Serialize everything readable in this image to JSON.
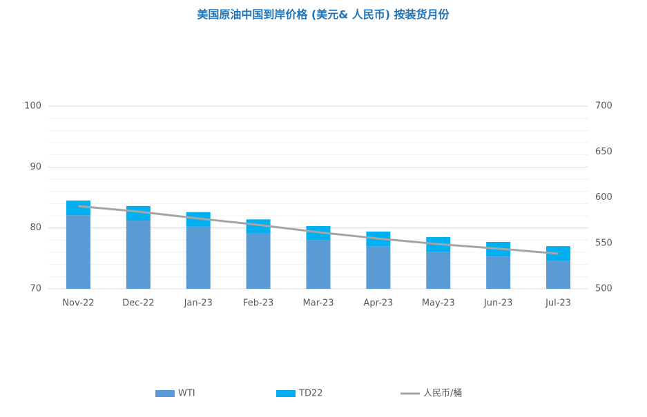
{
  "chart_data": {
    "type": "stacked-bar-line",
    "title": "美国原油中国到岸价格 (美元& 人民币) 按装货月份",
    "categories": [
      "Nov-22",
      "Dec-22",
      "Jan-23",
      "Feb-23",
      "Mar-23",
      "Apr-23",
      "May-23",
      "Jun-23",
      "Jul-23"
    ],
    "series": [
      {
        "name": "WTI",
        "color": "#5b9bd5",
        "kind": "bar",
        "values": [
          82.1,
          81.2,
          80.2,
          79.1,
          78.0,
          77.0,
          76.1,
          75.3,
          74.6
        ]
      },
      {
        "name": "TD22",
        "color": "#00b0f0",
        "kind": "bar",
        "values": [
          2.4,
          2.4,
          2.4,
          2.3,
          2.3,
          2.4,
          2.4,
          2.4,
          2.4
        ]
      },
      {
        "name": "人民币/桶",
        "color": "#a5a5a5",
        "kind": "line",
        "axis": "y2",
        "values": [
          590.6,
          584.5,
          577,
          570,
          562,
          555,
          549,
          544,
          538.5
        ]
      }
    ],
    "ylim": [
      70,
      100
    ],
    "yticks": [
      70,
      80,
      90,
      100
    ],
    "y_minor_ticks": [
      72,
      74,
      76,
      78,
      82,
      84,
      86,
      88,
      92,
      94,
      96,
      98
    ],
    "y2lim": [
      500,
      700
    ],
    "y2ticks": [
      500,
      550,
      600,
      650,
      700
    ],
    "grid": true,
    "legend": "bottom"
  }
}
